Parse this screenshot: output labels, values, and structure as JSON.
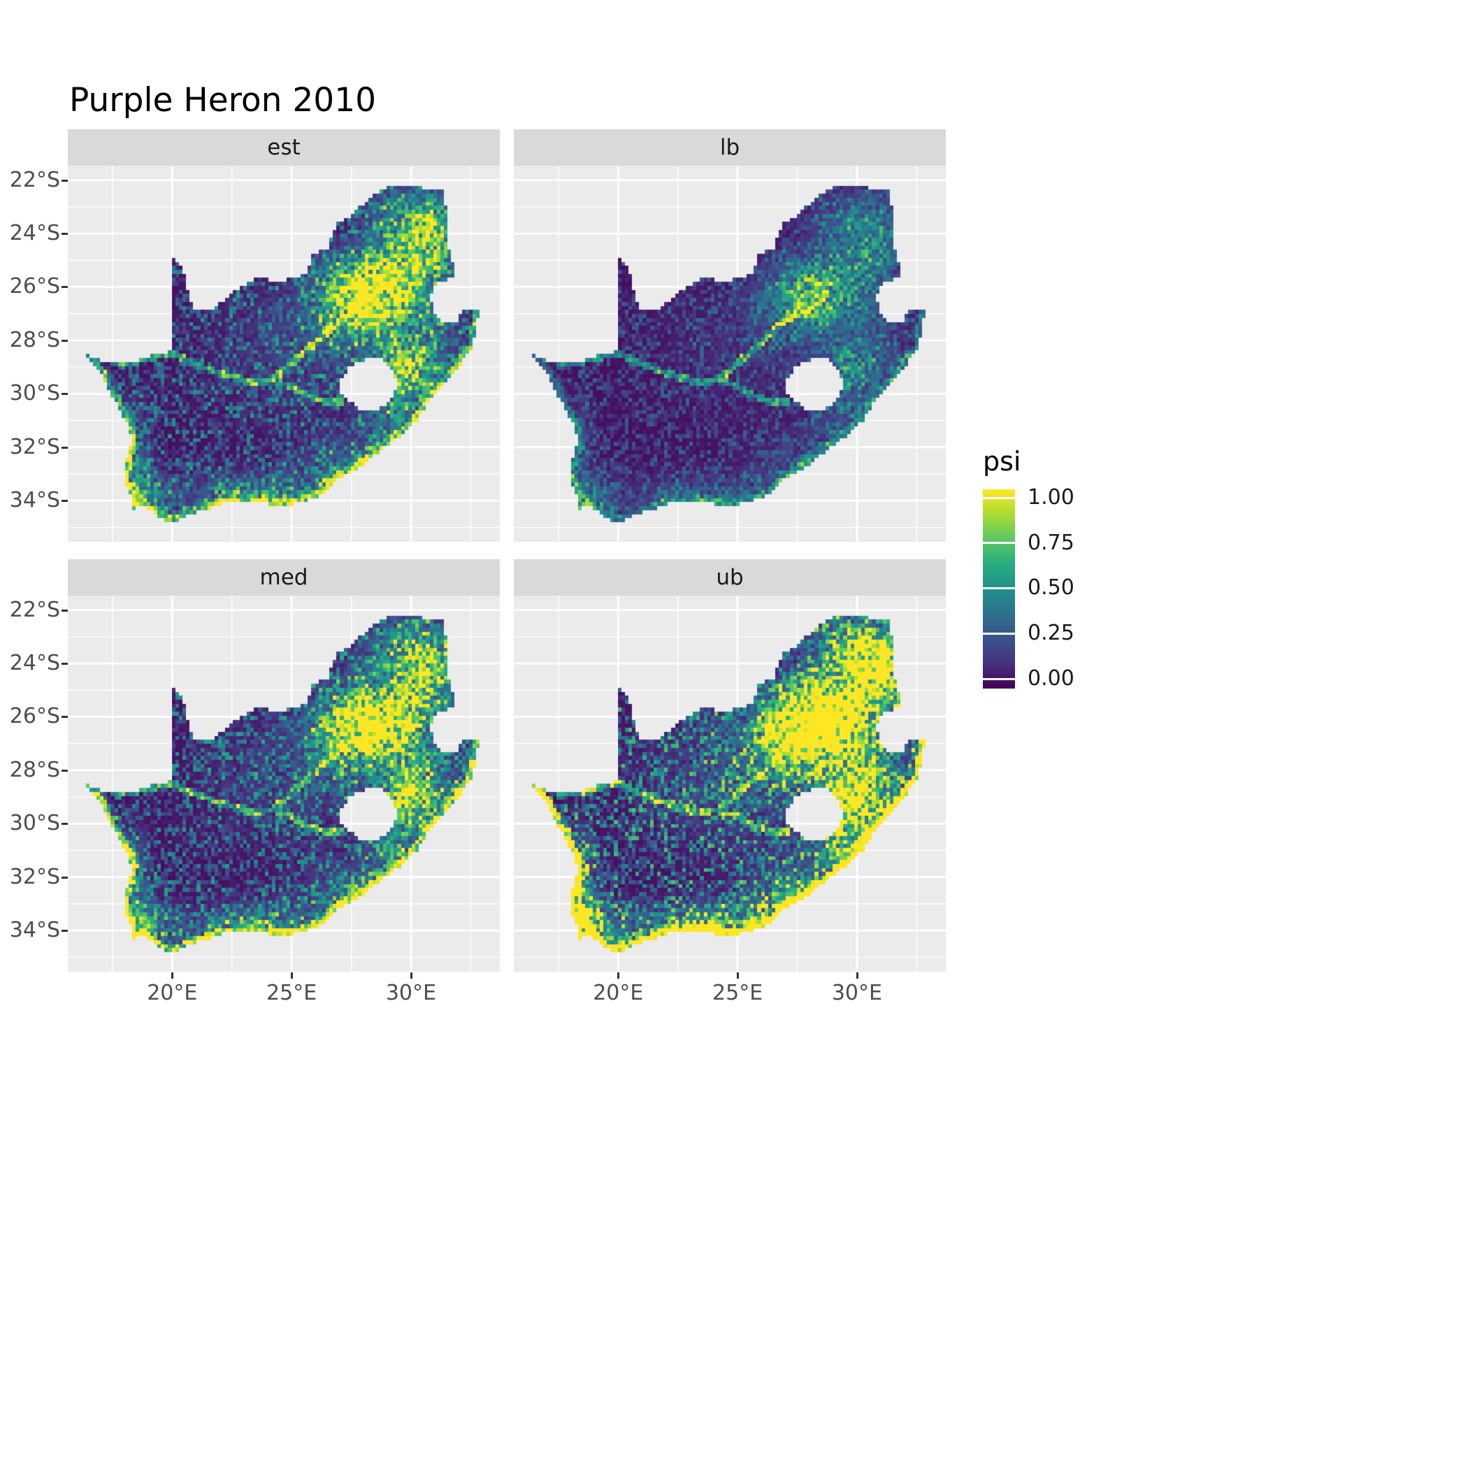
{
  "chart_data": {
    "type": "heatmap",
    "title": "Purple Heron 2010",
    "variable": "psi",
    "facets": [
      {
        "label": "est",
        "seed": 101,
        "gain": 1.0,
        "base": 1.0,
        "coast": 0.6
      },
      {
        "label": "lb",
        "seed": 202,
        "gain": 0.55,
        "base": 0.6,
        "coast": 0.35
      },
      {
        "label": "med",
        "seed": 303,
        "gain": 1.05,
        "base": 1.05,
        "coast": 0.85
      },
      {
        "label": "ub",
        "seed": 404,
        "gain": 1.55,
        "base": 1.35,
        "coast": 1.25
      }
    ],
    "x": {
      "domain": [
        15.63,
        33.72
      ],
      "ticks": [
        20,
        25,
        30
      ],
      "labels": [
        "20°E",
        "25°E",
        "30°E"
      ],
      "minor": [
        17.5,
        22.5,
        27.5,
        32.5
      ]
    },
    "y": {
      "domain": [
        -35.54,
        -21.46
      ],
      "ticks": [
        22,
        24,
        26,
        28,
        30,
        32,
        34
      ],
      "labels": [
        "22°S",
        "24°S",
        "26°S",
        "28°S",
        "30°S",
        "32°S",
        "34°S"
      ],
      "minor": [
        23,
        25,
        27,
        29,
        31,
        33,
        35
      ]
    },
    "legend": {
      "title": "psi",
      "tick_values": [
        1.0,
        0.75,
        0.5,
        0.25,
        0.0
      ],
      "tick_labels": [
        "1.00",
        "0.75",
        "0.50",
        "0.25",
        "0.00"
      ]
    },
    "value_range": [
      0,
      1
    ],
    "viridis": [
      [
        0,
        "#440154"
      ],
      [
        0.125,
        "#46327E"
      ],
      [
        0.25,
        "#3B528B"
      ],
      [
        0.375,
        "#2C728E"
      ],
      [
        0.5,
        "#21908C"
      ],
      [
        0.625,
        "#27AD81"
      ],
      [
        0.75,
        "#5DC863"
      ],
      [
        0.875,
        "#AADC32"
      ],
      [
        1,
        "#FDE725"
      ]
    ],
    "colors": {
      "panel_bg": "#EBEBEB",
      "strip_bg": "#D9D9D9",
      "grid": "#FFFFFF",
      "axis_text": "#4D4D4D",
      "tick_mark": "#333333",
      "title_text": "#000000",
      "background": "#FFFFFF"
    },
    "map_model": {
      "cell_size": 0.15,
      "outline": [
        [
          16.45,
          -28.58
        ],
        [
          17.2,
          -28.78
        ],
        [
          18.2,
          -28.88
        ],
        [
          19.3,
          -28.52
        ],
        [
          19.98,
          -28.42
        ],
        [
          19.98,
          -24.75
        ],
        [
          20.45,
          -25.3
        ],
        [
          20.7,
          -26.2
        ],
        [
          20.85,
          -26.82
        ],
        [
          21.7,
          -26.87
        ],
        [
          22.4,
          -26.3
        ],
        [
          23.0,
          -25.95
        ],
        [
          23.65,
          -25.6
        ],
        [
          24.25,
          -25.78
        ],
        [
          25.05,
          -25.72
        ],
        [
          25.65,
          -25.48
        ],
        [
          25.9,
          -24.72
        ],
        [
          26.5,
          -24.62
        ],
        [
          26.9,
          -23.62
        ],
        [
          27.65,
          -23.2
        ],
        [
          28.35,
          -22.6
        ],
        [
          29.15,
          -22.18
        ],
        [
          29.75,
          -22.13
        ],
        [
          30.5,
          -22.3
        ],
        [
          31.3,
          -22.4
        ],
        [
          31.6,
          -23.6
        ],
        [
          31.5,
          -24.4
        ],
        [
          31.95,
          -25.55
        ],
        [
          31.1,
          -25.9
        ],
        [
          30.8,
          -26.3
        ],
        [
          30.95,
          -26.9
        ],
        [
          31.15,
          -27.2
        ],
        [
          31.6,
          -27.32
        ],
        [
          31.97,
          -27.32
        ],
        [
          32.13,
          -26.86
        ],
        [
          32.89,
          -26.86
        ],
        [
          32.55,
          -28.3
        ],
        [
          31.8,
          -29.2
        ],
        [
          31.05,
          -29.9
        ],
        [
          30.3,
          -30.95
        ],
        [
          29.5,
          -31.6
        ],
        [
          28.7,
          -32.15
        ],
        [
          28.0,
          -32.65
        ],
        [
          27.1,
          -33.1
        ],
        [
          26.4,
          -33.75
        ],
        [
          25.65,
          -34.0
        ],
        [
          24.85,
          -34.2
        ],
        [
          23.6,
          -34.1
        ],
        [
          22.2,
          -34.1
        ],
        [
          21.0,
          -34.45
        ],
        [
          20.0,
          -34.82
        ],
        [
          19.4,
          -34.62
        ],
        [
          18.82,
          -34.18
        ],
        [
          18.35,
          -34.3
        ],
        [
          18.28,
          -33.85
        ],
        [
          17.95,
          -33.15
        ],
        [
          18.05,
          -32.6
        ],
        [
          18.3,
          -31.9
        ],
        [
          18.22,
          -31.25
        ],
        [
          17.6,
          -30.3
        ],
        [
          17.05,
          -29.3
        ],
        [
          16.75,
          -28.9
        ]
      ],
      "lesotho": [
        [
          27.0,
          -29.6
        ],
        [
          27.35,
          -29.05
        ],
        [
          27.8,
          -28.82
        ],
        [
          28.4,
          -28.6
        ],
        [
          28.95,
          -28.78
        ],
        [
          29.3,
          -29.25
        ],
        [
          29.45,
          -29.78
        ],
        [
          29.1,
          -30.3
        ],
        [
          28.55,
          -30.65
        ],
        [
          27.95,
          -30.62
        ],
        [
          27.45,
          -30.28
        ],
        [
          27.05,
          -29.95
        ]
      ],
      "coast_start_index": 35,
      "rivers": [
        [
          [
            17.0,
            -28.7
          ],
          [
            18.0,
            -28.85
          ],
          [
            19.0,
            -28.7
          ],
          [
            19.98,
            -28.45
          ],
          [
            20.8,
            -28.85
          ],
          [
            21.6,
            -29.1
          ],
          [
            22.5,
            -29.35
          ],
          [
            23.4,
            -29.6
          ],
          [
            24.2,
            -29.45
          ],
          [
            24.9,
            -29.7
          ],
          [
            25.6,
            -30.05
          ],
          [
            26.4,
            -30.3
          ],
          [
            27.1,
            -30.35
          ]
        ],
        [
          [
            24.2,
            -29.45
          ],
          [
            24.9,
            -28.95
          ],
          [
            25.6,
            -28.4
          ],
          [
            26.3,
            -27.85
          ],
          [
            26.9,
            -27.35
          ],
          [
            27.55,
            -26.9
          ],
          [
            28.1,
            -26.8
          ]
        ]
      ],
      "hotspots": [
        [
          28.1,
          -26.2,
          1.15,
          0.85,
          1.05
        ],
        [
          29.9,
          -24.9,
          1.3,
          1.0,
          0.5
        ],
        [
          30.9,
          -24.1,
          0.8,
          0.9,
          0.4
        ],
        [
          29.9,
          -23.2,
          1.2,
          0.7,
          0.35
        ],
        [
          30.3,
          -29.2,
          1.0,
          1.0,
          0.5
        ],
        [
          29.6,
          -29.0,
          0.5,
          0.5,
          0.35
        ],
        [
          29.2,
          -30.9,
          0.8,
          0.7,
          0.35
        ],
        [
          27.6,
          -32.9,
          1.3,
          0.8,
          0.4
        ],
        [
          23.5,
          -33.9,
          2.0,
          0.55,
          0.45
        ],
        [
          18.7,
          -33.9,
          0.75,
          0.6,
          0.6
        ],
        [
          18.4,
          -32.3,
          0.4,
          1.2,
          0.35
        ],
        [
          27.3,
          -27.1,
          1.3,
          1.0,
          0.3
        ],
        [
          25.2,
          -28.3,
          2.6,
          1.9,
          0.12
        ],
        [
          30.1,
          -27.2,
          1.4,
          1.4,
          0.28
        ]
      ]
    }
  }
}
